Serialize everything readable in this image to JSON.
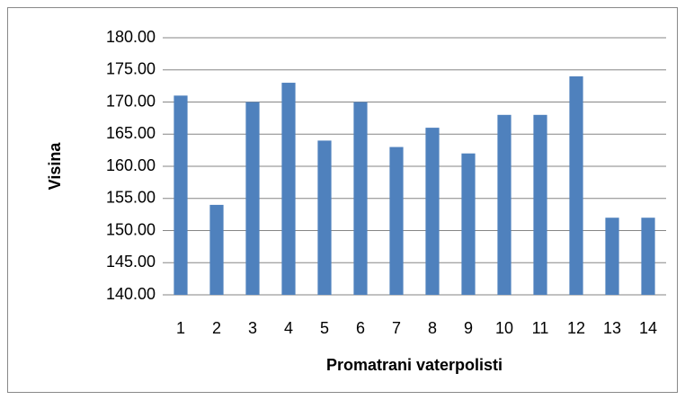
{
  "chart_data": {
    "type": "bar",
    "categories": [
      "1",
      "2",
      "3",
      "4",
      "5",
      "6",
      "7",
      "8",
      "9",
      "10",
      "11",
      "12",
      "13",
      "14"
    ],
    "values": [
      171,
      154,
      170,
      173,
      164,
      170,
      163,
      166,
      162,
      168,
      168,
      174,
      152,
      152
    ],
    "color": "#4f81bd",
    "ylim": [
      140,
      180
    ],
    "yticks": [
      {
        "value": 140,
        "label": "140.00"
      },
      {
        "value": 145,
        "label": "145.00"
      },
      {
        "value": 150,
        "label": "150.00"
      },
      {
        "value": 155,
        "label": "155.00"
      },
      {
        "value": 160,
        "label": "160.00"
      },
      {
        "value": 165,
        "label": "165.00"
      },
      {
        "value": 170,
        "label": "170.00"
      },
      {
        "value": 175,
        "label": "175.00"
      },
      {
        "value": 180,
        "label": "180.00"
      }
    ],
    "grid": true,
    "xlabel": "Promatrani vaterpolisti",
    "ylabel": "Visina"
  }
}
